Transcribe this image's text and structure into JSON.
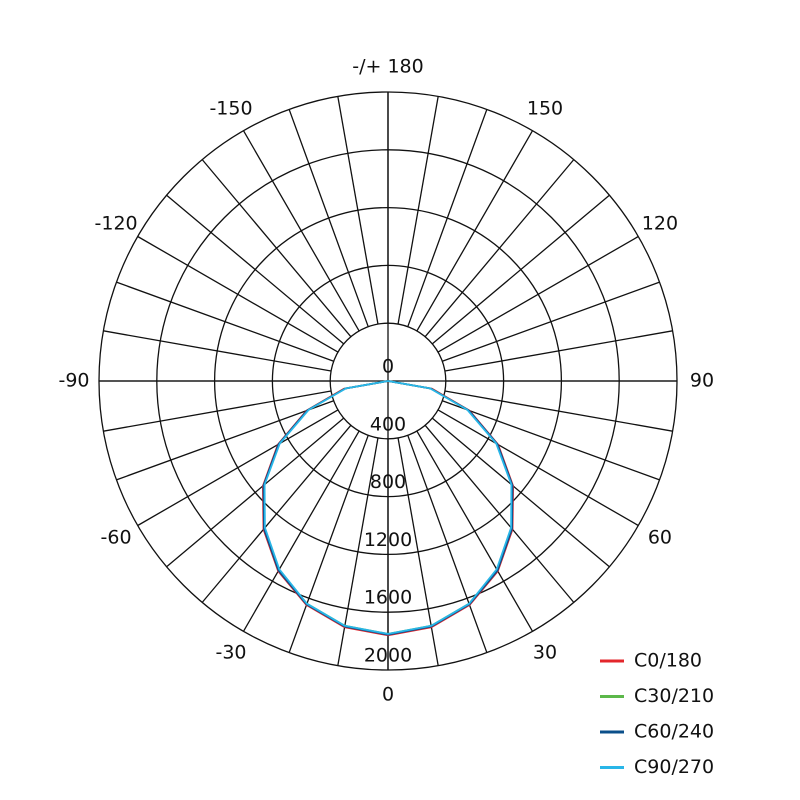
{
  "chart_data": {
    "type": "polar",
    "x": [
      -90,
      -80,
      -70,
      -60,
      -50,
      -40,
      -30,
      -20,
      -10,
      0,
      10,
      20,
      30,
      40,
      50,
      60,
      70,
      80,
      90
    ],
    "series": [
      {
        "name": "C0/180",
        "color": "#e3262b",
        "values": [
          0,
          310,
          600,
          880,
          1130,
          1340,
          1520,
          1650,
          1730,
          1760,
          1730,
          1650,
          1520,
          1340,
          1130,
          880,
          600,
          310,
          0
        ]
      },
      {
        "name": "C30/210",
        "color": "#5cb84a",
        "values": [
          0,
          300,
          590,
          870,
          1120,
          1330,
          1510,
          1640,
          1720,
          1750,
          1720,
          1640,
          1510,
          1330,
          1120,
          870,
          590,
          300,
          0
        ]
      },
      {
        "name": "C60/240",
        "color": "#0b4f8a",
        "values": [
          0,
          300,
          595,
          875,
          1125,
          1335,
          1515,
          1645,
          1725,
          1755,
          1725,
          1645,
          1515,
          1335,
          1125,
          875,
          595,
          300,
          0
        ]
      },
      {
        "name": "C90/270",
        "color": "#29b6e8",
        "values": [
          0,
          295,
          585,
          865,
          1115,
          1325,
          1505,
          1640,
          1720,
          1750,
          1720,
          1640,
          1505,
          1325,
          1115,
          865,
          585,
          295,
          0
        ]
      }
    ],
    "rlim": [
      0,
      2000
    ],
    "rticks": [
      0,
      400,
      800,
      1200,
      1600,
      2000
    ],
    "angle_ticks": [
      -150,
      -120,
      -90,
      -60,
      -30,
      0,
      30,
      60,
      90,
      120,
      150,
      {
        "value": 180,
        "label": "-/+ 180"
      }
    ],
    "angular_grid_step": 10,
    "legend": "bottom-right"
  }
}
